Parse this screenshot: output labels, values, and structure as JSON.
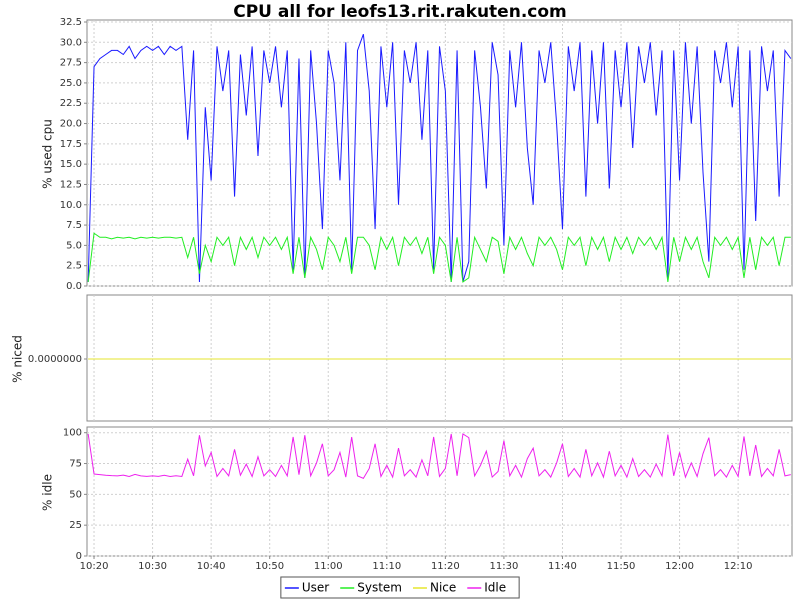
{
  "chart_data": {
    "type": "line",
    "title": "CPU all for leofs13.rit.rakuten.com",
    "grid": true,
    "legend": "bottom",
    "x": [
      "10:19",
      "10:20",
      "10:21",
      "10:22",
      "10:23",
      "10:24",
      "10:25",
      "10:26",
      "10:27",
      "10:28",
      "10:29",
      "10:30",
      "10:31",
      "10:32",
      "10:33",
      "10:34",
      "10:35",
      "10:36",
      "10:37",
      "10:38",
      "10:39",
      "10:40",
      "10:41",
      "10:42",
      "10:43",
      "10:44",
      "10:45",
      "10:46",
      "10:47",
      "10:48",
      "10:49",
      "10:50",
      "10:51",
      "10:52",
      "10:53",
      "10:54",
      "10:55",
      "10:56",
      "10:57",
      "10:58",
      "10:59",
      "11:00",
      "11:01",
      "11:02",
      "11:03",
      "11:04",
      "11:05",
      "11:06",
      "11:07",
      "11:08",
      "11:09",
      "11:10",
      "11:11",
      "11:12",
      "11:13",
      "11:14",
      "11:15",
      "11:16",
      "11:17",
      "11:18",
      "11:19",
      "11:20",
      "11:21",
      "11:22",
      "11:23",
      "11:24",
      "11:25",
      "11:26",
      "11:27",
      "11:28",
      "11:29",
      "11:30",
      "11:31",
      "11:32",
      "11:33",
      "11:34",
      "11:35",
      "11:36",
      "11:37",
      "11:38",
      "11:39",
      "11:40",
      "11:41",
      "11:42",
      "11:43",
      "11:44",
      "11:45",
      "11:46",
      "11:47",
      "11:48",
      "11:49",
      "11:50",
      "11:51",
      "11:52",
      "11:53",
      "11:54",
      "11:55",
      "11:56",
      "11:57",
      "11:58",
      "11:59",
      "12:00",
      "12:01",
      "12:02",
      "12:03",
      "12:04",
      "12:05",
      "12:06",
      "12:07",
      "12:08",
      "12:09",
      "12:10",
      "12:11",
      "12:12",
      "12:13",
      "12:14",
      "12:15",
      "12:16",
      "12:17",
      "12:18",
      "12:19"
    ],
    "xticks": [
      "10:20",
      "10:30",
      "10:40",
      "10:50",
      "11:00",
      "11:10",
      "11:20",
      "11:30",
      "11:40",
      "11:50",
      "12:00",
      "12:10"
    ],
    "panels": [
      {
        "ylabel": "% used cpu",
        "ylim": [
          0,
          32.5
        ],
        "yticks": [
          {
            "value": 0,
            "label": "0.0"
          },
          2.5,
          {
            "value": 5,
            "label": "5.0"
          },
          7.5,
          {
            "value": 10,
            "label": "10.0"
          },
          12.5,
          {
            "value": 15,
            "label": "15.0"
          },
          17.5,
          {
            "value": 20,
            "label": "20.0"
          },
          22.5,
          {
            "value": 25,
            "label": "25.0"
          },
          27.5,
          {
            "value": 30,
            "label": "30.0"
          },
          32.5
        ],
        "series": [
          {
            "name": "User",
            "color": "#1a1aff",
            "values": [
              0.5,
              27,
              28,
              28.5,
              29,
              29,
              28.5,
              29.5,
              28,
              29,
              29.5,
              29,
              29.5,
              28.5,
              29.5,
              29,
              29.5,
              18,
              29,
              0.5,
              22,
              13,
              29.5,
              24,
              29,
              11,
              28.5,
              21,
              29.5,
              16,
              29,
              25,
              29.5,
              22,
              29,
              2,
              28,
              1,
              29,
              20,
              7,
              29,
              25,
              13,
              30,
              2,
              29,
              31,
              24,
              7,
              29.5,
              22,
              30,
              10,
              29,
              25,
              30,
              18,
              29,
              2,
              29.5,
              24,
              0.5,
              29,
              0.5,
              3,
              29,
              22,
              12,
              30,
              26,
              5,
              29,
              22,
              30,
              17,
              10,
              29,
              25,
              30,
              20,
              7,
              29.5,
              24,
              30,
              11,
              29,
              20,
              30,
              12,
              29,
              22,
              30,
              17,
              29.5,
              25,
              30,
              21,
              29,
              1,
              29,
              13,
              30,
              20,
              29.5,
              14,
              3,
              29,
              25,
              30,
              22,
              29.5,
              2,
              29,
              8,
              29.5,
              24,
              29,
              11,
              29,
              28
            ]
          },
          {
            "name": "System",
            "color": "#22ee22",
            "values": [
              0.5,
              6.5,
              6,
              6,
              5.8,
              6,
              5.9,
              6,
              5.8,
              6,
              5.9,
              6,
              5.9,
              6,
              6,
              5.9,
              6,
              3.5,
              6,
              1.5,
              5,
              3,
              6,
              5,
              6,
              2.5,
              6,
              4.5,
              6,
              3.5,
              6,
              5,
              6,
              4.5,
              6,
              1.5,
              6,
              1,
              6,
              4.5,
              2,
              6,
              5,
              3,
              6,
              1.5,
              6,
              6,
              5,
              2,
              6,
              4.5,
              6,
              2.5,
              6,
              5,
              6,
              4,
              6,
              1.5,
              6,
              5,
              0.5,
              6,
              0.5,
              1,
              6,
              4.5,
              3,
              6,
              5.5,
              1.5,
              6,
              4.5,
              6,
              4,
              2.5,
              6,
              5,
              6,
              4.5,
              2,
              6,
              5,
              6,
              2.5,
              6,
              4.5,
              6,
              3,
              6,
              4.5,
              6,
              4,
              6,
              5,
              6,
              4.5,
              6,
              0.5,
              6,
              3,
              6,
              4.5,
              6,
              3,
              1,
              6,
              5,
              6,
              4.5,
              6,
              1,
              6,
              2,
              6,
              5,
              6,
              2.5,
              6,
              6
            ]
          }
        ]
      },
      {
        "ylabel": "% niced",
        "ylim": [
          -1,
          1
        ],
        "yticks": [
          {
            "value": 0,
            "label": "0.0000000"
          }
        ],
        "series": [
          {
            "name": "Nice",
            "color": "#e6e62e",
            "values": [
              0,
              0,
              0,
              0,
              0,
              0,
              0,
              0,
              0,
              0,
              0,
              0,
              0,
              0,
              0,
              0,
              0,
              0,
              0,
              0,
              0,
              0,
              0,
              0,
              0,
              0,
              0,
              0,
              0,
              0,
              0,
              0,
              0,
              0,
              0,
              0,
              0,
              0,
              0,
              0,
              0,
              0,
              0,
              0,
              0,
              0,
              0,
              0,
              0,
              0,
              0,
              0,
              0,
              0,
              0,
              0,
              0,
              0,
              0,
              0,
              0,
              0,
              0,
              0,
              0,
              0,
              0,
              0,
              0,
              0,
              0,
              0,
              0,
              0,
              0,
              0,
              0,
              0,
              0,
              0,
              0,
              0,
              0,
              0,
              0,
              0,
              0,
              0,
              0,
              0,
              0,
              0,
              0,
              0,
              0,
              0,
              0,
              0,
              0,
              0,
              0,
              0,
              0,
              0,
              0,
              0,
              0,
              0,
              0,
              0,
              0,
              0,
              0,
              0,
              0,
              0,
              0,
              0,
              0,
              0,
              0
            ]
          }
        ]
      },
      {
        "ylabel": "% idle",
        "ylim": [
          0,
          103
        ],
        "yticks": [
          0,
          25,
          50,
          75,
          100
        ],
        "series": [
          {
            "name": "Idle",
            "color": "#ee22ee",
            "values": [
              99,
              66.5,
              66,
              65.5,
              65.2,
              65,
              65.6,
              64.5,
              66.2,
              65,
              64.6,
              65,
              64.6,
              65.5,
              64.5,
              65.1,
              64.5,
              78.5,
              65,
              98,
              73,
              84,
              64.5,
              71,
              65,
              86.5,
              65.5,
              74.5,
              64.5,
              80.5,
              65,
              70,
              64.5,
              73.5,
              65,
              96.5,
              66,
              98,
              65,
              75.5,
              91,
              65,
              70,
              84,
              64,
              96.5,
              65,
              63,
              71,
              91,
              64.5,
              73.5,
              64,
              87.5,
              65,
              70,
              64,
              78,
              65,
              96.5,
              64.5,
              71,
              99,
              65,
              99,
              96,
              65,
              73.5,
              85,
              64,
              68.5,
              93.5,
              65,
              73.5,
              64,
              79,
              87.5,
              65,
              70,
              64,
              75.5,
              91,
              64.5,
              71,
              64,
              86.5,
              65,
              75.5,
              64,
              85,
              65,
              73.5,
              64,
              79,
              64.5,
              70,
              64,
              74.5,
              65,
              98.5,
              65,
              84,
              64,
              75.5,
              64.5,
              83,
              96,
              65,
              70,
              64,
              73.5,
              64.5,
              97,
              65,
              90,
              64.5,
              71,
              65,
              86.5,
              65,
              66
            ]
          }
        ]
      }
    ]
  }
}
